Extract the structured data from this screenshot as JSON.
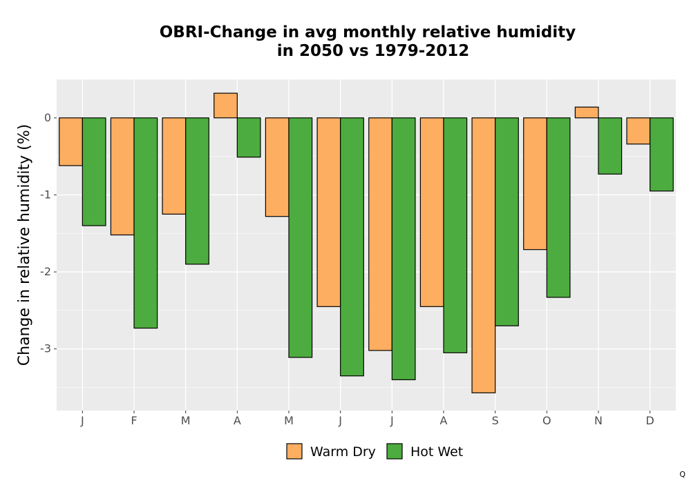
{
  "chart_data": {
    "type": "bar",
    "title_line1": "OBRI-Change in avg monthly relative humidity",
    "title_line2": "in 2050 vs 1979-2012",
    "xlabel": "",
    "ylabel": "Change in relative humidity (%)",
    "categories": [
      "J",
      "F",
      "M",
      "A",
      "M",
      "J",
      "J",
      "A",
      "S",
      "O",
      "N",
      "D"
    ],
    "series": [
      {
        "name": "Warm Dry",
        "color": "#FDAE61",
        "values": [
          -0.62,
          -1.52,
          -1.25,
          0.32,
          -1.28,
          -2.45,
          -3.02,
          -2.45,
          -3.57,
          -1.71,
          0.14,
          -0.34
        ]
      },
      {
        "name": "Hot Wet",
        "color": "#4DAC3F",
        "values": [
          -1.4,
          -2.73,
          -1.9,
          -0.51,
          -3.11,
          -3.35,
          -3.4,
          -3.05,
          -2.7,
          -2.33,
          -0.73,
          -0.95
        ]
      }
    ],
    "ylim": [
      -3.8,
      0.5
    ],
    "yticks": [
      0,
      -1,
      -2,
      -3
    ],
    "ytick_labels": [
      "0",
      "-1",
      "-2",
      "-3"
    ],
    "grid": true,
    "legend_position": "bottom",
    "panel_background": "#EBEBEB",
    "grid_color": "#FFFFFF"
  },
  "corner_mark": "Q"
}
